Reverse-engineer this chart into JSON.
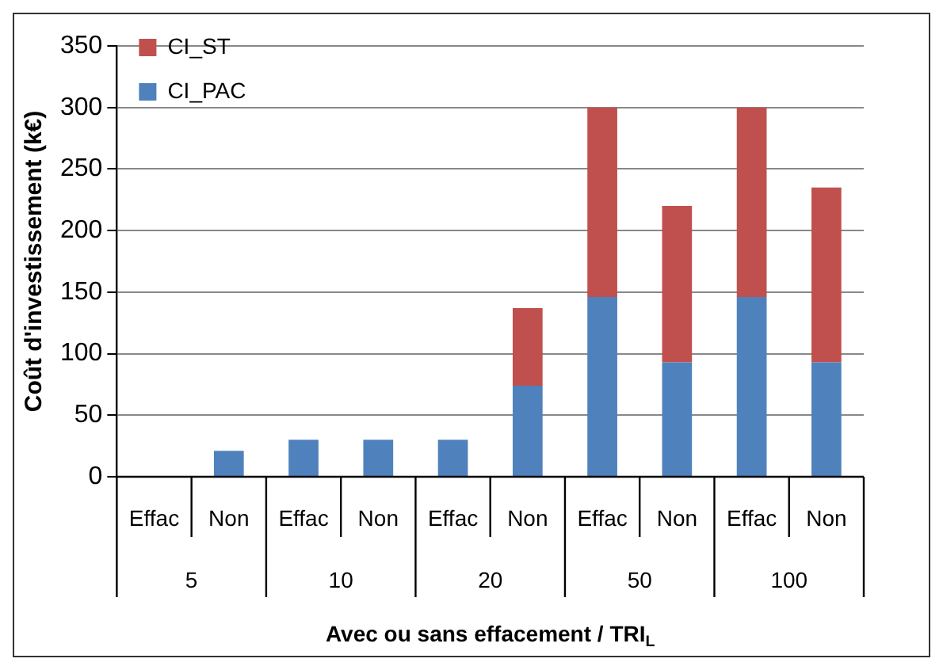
{
  "chart_data": {
    "type": "bar",
    "stacked": true,
    "ylabel": "Coût d'investissement (k€)",
    "xlabel": "Avec ou sans effacement / TRI$_{L}$",
    "categories": [
      "Effac",
      "Non",
      "Effac",
      "Non",
      "Effac",
      "Non",
      "Effac",
      "Non",
      "Effac",
      "Non"
    ],
    "annotations": [
      "5",
      "10",
      "20",
      "50",
      "100"
    ],
    "series": [
      {
        "name": "CI_PAC",
        "color": "#4f81bd",
        "values": [
          0,
          21,
          30,
          30,
          30,
          74,
          146,
          93,
          146,
          93
        ]
      },
      {
        "name": "CI_ST",
        "color": "#c0504d",
        "values": [
          0,
          0,
          0,
          0,
          0,
          63,
          154,
          127,
          154,
          142
        ]
      }
    ],
    "ylim": [
      0,
      350
    ],
    "yticks": [
      0,
      50,
      100,
      150,
      200,
      250,
      300,
      350
    ],
    "grid": "y",
    "legend": "top left"
  }
}
